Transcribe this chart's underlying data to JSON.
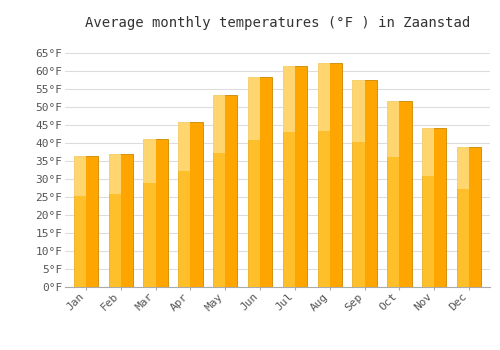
{
  "months": [
    "Jan",
    "Feb",
    "Mar",
    "Apr",
    "May",
    "Jun",
    "Jul",
    "Aug",
    "Sep",
    "Oct",
    "Nov",
    "Dec"
  ],
  "values": [
    36.3,
    37.0,
    41.2,
    45.9,
    53.2,
    58.3,
    61.5,
    62.1,
    57.4,
    51.6,
    44.1,
    39.0
  ],
  "bar_color": "#FFA500",
  "bar_edge_color": "#CC8800",
  "bar_highlight": "#FFD700",
  "title": "Average monthly temperatures (°F ) in Zaanstad",
  "ylim": [
    0,
    70
  ],
  "yticks": [
    0,
    5,
    10,
    15,
    20,
    25,
    30,
    35,
    40,
    45,
    50,
    55,
    60,
    65
  ],
  "ytick_labels": [
    "0°F",
    "5°F",
    "10°F",
    "15°F",
    "20°F",
    "25°F",
    "30°F",
    "35°F",
    "40°F",
    "45°F",
    "50°F",
    "55°F",
    "60°F",
    "65°F"
  ],
  "bg_color": "#FFFFFF",
  "grid_color": "#DDDDDD",
  "title_fontsize": 10,
  "tick_fontsize": 8
}
